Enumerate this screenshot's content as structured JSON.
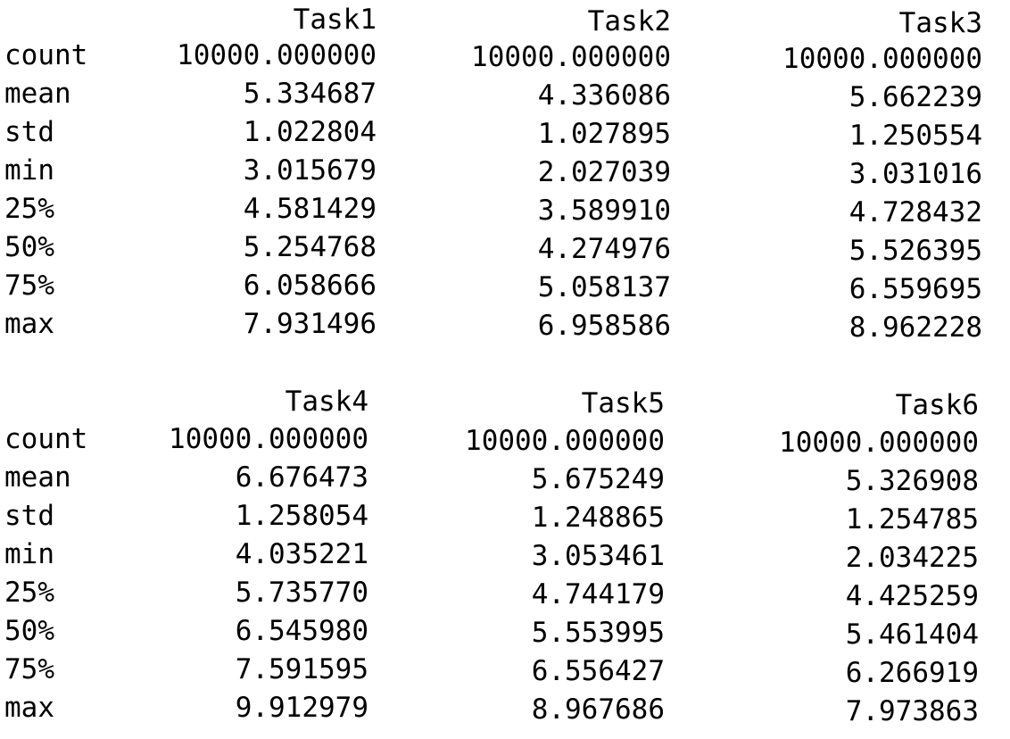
{
  "tables": [
    {
      "headers": [
        "Task1",
        "Task2",
        "Task3"
      ],
      "rows": [
        {
          "label": "count",
          "values": [
            "10000.000000",
            "10000.000000",
            "10000.000000"
          ]
        },
        {
          "label": "mean",
          "values": [
            "5.334687",
            "4.336086",
            "5.662239"
          ]
        },
        {
          "label": "std",
          "values": [
            "1.022804",
            "1.027895",
            "1.250554"
          ]
        },
        {
          "label": "min",
          "values": [
            "3.015679",
            "2.027039",
            "3.031016"
          ]
        },
        {
          "label": "25%",
          "values": [
            "4.581429",
            "3.589910",
            "4.728432"
          ]
        },
        {
          "label": "50%",
          "values": [
            "5.254768",
            "4.274976",
            "5.526395"
          ]
        },
        {
          "label": "75%",
          "values": [
            "6.058666",
            "5.058137",
            "6.559695"
          ]
        },
        {
          "label": "max",
          "values": [
            "7.931496",
            "6.958586",
            "8.962228"
          ]
        }
      ]
    },
    {
      "headers": [
        "Task4",
        "Task5",
        "Task6"
      ],
      "rows": [
        {
          "label": "count",
          "values": [
            "10000.000000",
            "10000.000000",
            "10000.000000"
          ]
        },
        {
          "label": "mean",
          "values": [
            "6.676473",
            "5.675249",
            "5.326908"
          ]
        },
        {
          "label": "std",
          "values": [
            "1.258054",
            "1.248865",
            "1.254785"
          ]
        },
        {
          "label": "min",
          "values": [
            "4.035221",
            "3.053461",
            "2.034225"
          ]
        },
        {
          "label": "25%",
          "values": [
            "5.735770",
            "4.744179",
            "4.425259"
          ]
        },
        {
          "label": "50%",
          "values": [
            "6.545980",
            "5.553995",
            "5.461404"
          ]
        },
        {
          "label": "75%",
          "values": [
            "7.591595",
            "6.556427",
            "6.266919"
          ]
        },
        {
          "label": "max",
          "values": [
            "9.912979",
            "8.967686",
            "7.973863"
          ]
        }
      ]
    }
  ]
}
